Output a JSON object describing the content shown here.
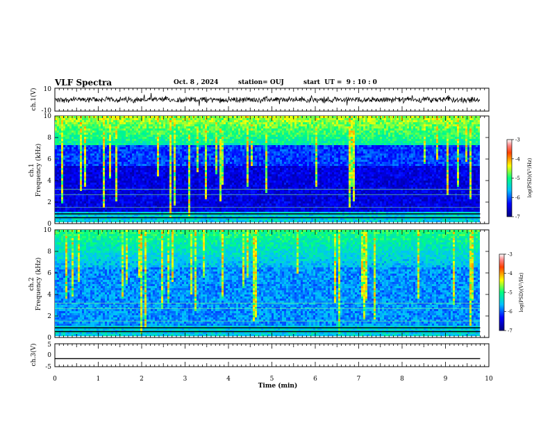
{
  "header": {
    "title": "VLF Spectra",
    "date": "Oct. 8 , 2024",
    "station": "station= OUJ",
    "start": "start  UT =  9 : 10 : 0"
  },
  "chart_data": [
    {
      "type": "line",
      "panel": "ch1-waveform",
      "ylabel": "ch.1(V)",
      "yticks": [
        "10",
        "-10"
      ],
      "ylim": [
        -10,
        10
      ],
      "trace_level": 0,
      "noise_amplitude": 3
    },
    {
      "type": "heatmap",
      "panel": "ch1-spectrogram",
      "ylabel": "ch.1\nFrequency (kHz)",
      "ylabel_lines": [
        "ch.1",
        "Frequency (kHz)"
      ],
      "yticks": [
        "0",
        "2",
        "4",
        "6",
        "8",
        "10"
      ],
      "ylim": [
        0,
        10
      ],
      "xlim": [
        0,
        9.8
      ],
      "colorbar": {
        "label": "log(PSD)(V²/Hz)",
        "ticks": [
          "-3",
          "-4",
          "-5",
          "-6",
          "-7"
        ],
        "range": [
          -7,
          -3
        ]
      }
    },
    {
      "type": "heatmap",
      "panel": "ch2-spectrogram",
      "ylabel": "ch.2\nFrequency (kHz)",
      "ylabel_lines": [
        "ch.2",
        "Frequency (kHz)"
      ],
      "yticks": [
        "0",
        "2",
        "4",
        "6",
        "8",
        "10"
      ],
      "ylim": [
        0,
        10
      ],
      "xlim": [
        0,
        9.8
      ],
      "colorbar": {
        "label": "log(PSD)(V²/Hz)",
        "ticks": [
          "-3",
          "-4",
          "-5",
          "-6",
          "-7"
        ],
        "range": [
          -7,
          -3
        ]
      }
    },
    {
      "type": "line",
      "panel": "ch3-waveform",
      "ylabel": "ch.3(V)",
      "yticks": [
        "5",
        "0",
        "-5"
      ],
      "ylim": [
        -5,
        5
      ],
      "trace_level": -1.5
    }
  ],
  "xaxis": {
    "label": "Time (min)",
    "ticks": [
      "0",
      "1",
      "2",
      "3",
      "4",
      "5",
      "6",
      "7",
      "8",
      "9",
      "10"
    ],
    "range": [
      0,
      10
    ]
  },
  "colors": {
    "low": "#00008b",
    "mid": "#00ffff",
    "high": "#ff0000",
    "trace": "#000000"
  }
}
